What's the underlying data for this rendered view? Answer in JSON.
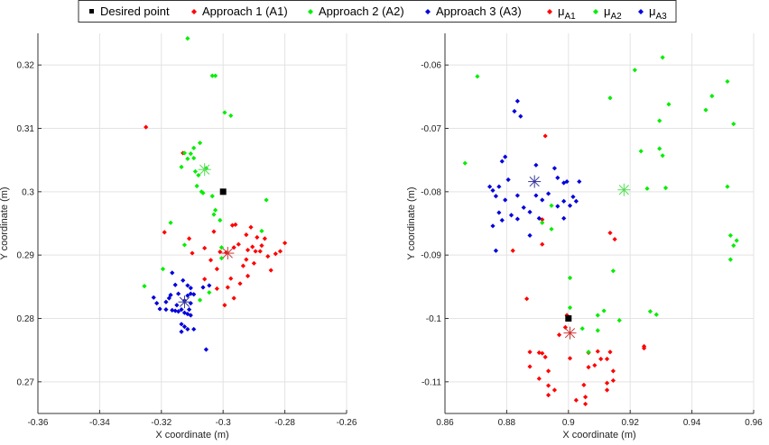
{
  "legend": {
    "placement": "top-center",
    "entries": [
      {
        "label": "Desired point",
        "color": "#000000",
        "marker": "square"
      },
      {
        "label": "Approach 1 (A1)",
        "color": "#ff0000",
        "marker": "diamond"
      },
      {
        "label": "Approach 2 (A2)",
        "color": "#00ee00",
        "marker": "diamond"
      },
      {
        "label": "Approach 3 (A3)",
        "color": "#0000dd",
        "marker": "diamond"
      },
      {
        "label": "μ",
        "sub": "A1",
        "color": "#ff0000",
        "marker": "diamond"
      },
      {
        "label": "μ",
        "sub": "A2",
        "color": "#00ee00",
        "marker": "diamond"
      },
      {
        "label": "μ",
        "sub": "A3",
        "color": "#0000dd",
        "marker": "diamond"
      }
    ]
  },
  "colors": {
    "desired": "#000000",
    "a1": "#ff0000",
    "a2": "#00ee00",
    "a3": "#0000dd",
    "mean_a1": "#cc3333",
    "mean_a2": "#55dd55",
    "mean_a3": "#333399",
    "grid": "#e3e3e3",
    "axis": "#333333"
  },
  "chart_data": [
    {
      "type": "scatter",
      "xlabel": "X coordinate (m)",
      "ylabel": "Y coordinate (m)",
      "xlim": [
        -0.36,
        -0.26
      ],
      "ylim": [
        0.265,
        0.325
      ],
      "xticks": [
        "-0.36",
        "-0.34",
        "-0.32",
        "-0.3",
        "-0.28",
        "-0.26"
      ],
      "yticks": [
        "0.27",
        "0.28",
        "0.29",
        "0.3",
        "0.31",
        "0.32"
      ],
      "xtick_values": [
        -0.36,
        -0.34,
        -0.32,
        -0.3,
        -0.28,
        -0.26
      ],
      "ytick_values": [
        0.27,
        0.28,
        0.29,
        0.3,
        0.31,
        0.32
      ],
      "grid": true,
      "desired_point": [
        -0.3,
        0.3
      ],
      "series": [
        {
          "key": "a1",
          "points": [
            [
              -0.325,
              0.3102
            ],
            [
              -0.319,
              0.2936
            ],
            [
              -0.313,
              0.3061
            ],
            [
              -0.311,
              0.2926
            ],
            [
              -0.31,
              0.2903
            ],
            [
              -0.306,
              0.2911
            ],
            [
              -0.306,
              0.2862
            ],
            [
              -0.304,
              0.2892
            ],
            [
              -0.303,
              0.2937
            ],
            [
              -0.302,
              0.2878
            ],
            [
              -0.301,
              0.2905
            ],
            [
              -0.299,
              0.2904
            ],
            [
              -0.297,
              0.2947
            ],
            [
              -0.2965,
              0.2912
            ],
            [
              -0.296,
              0.2948
            ],
            [
              -0.295,
              0.2917
            ],
            [
              -0.2945,
              0.2855
            ],
            [
              -0.2935,
              0.2883
            ],
            [
              -0.2925,
              0.2932
            ],
            [
              -0.2925,
              0.2893
            ],
            [
              -0.292,
              0.2908
            ],
            [
              -0.292,
              0.2867
            ],
            [
              -0.291,
              0.2944
            ],
            [
              -0.2905,
              0.2913
            ],
            [
              -0.29,
              0.2887
            ],
            [
              -0.2895,
              0.2906
            ],
            [
              -0.289,
              0.2928
            ],
            [
              -0.288,
              0.2906
            ],
            [
              -0.2875,
              0.2915
            ],
            [
              -0.2865,
              0.2926
            ],
            [
              -0.2855,
              0.2898
            ],
            [
              -0.2845,
              0.2876
            ],
            [
              -0.283,
              0.2902
            ],
            [
              -0.2815,
              0.2906
            ],
            [
              -0.28,
              0.2919
            ],
            [
              -0.302,
              0.2847
            ],
            [
              -0.2995,
              0.2821
            ],
            [
              -0.2965,
              0.2832
            ],
            [
              -0.2975,
              0.2863
            ],
            [
              -0.2985,
              0.2849
            ]
          ]
        },
        {
          "key": "a2",
          "points": [
            [
              -0.3115,
              0.3242
            ],
            [
              -0.3035,
              0.3183
            ],
            [
              -0.3025,
              0.3183
            ],
            [
              -0.2995,
              0.3125
            ],
            [
              -0.2975,
              0.312
            ],
            [
              -0.3075,
              0.3077
            ],
            [
              -0.3095,
              0.3069
            ],
            [
              -0.3105,
              0.306
            ],
            [
              -0.3125,
              0.3061
            ],
            [
              -0.3095,
              0.3053
            ],
            [
              -0.3115,
              0.3052
            ],
            [
              -0.3135,
              0.3039
            ],
            [
              -0.309,
              0.3032
            ],
            [
              -0.3055,
              0.3037
            ],
            [
              -0.308,
              0.3026
            ],
            [
              -0.3085,
              0.3009
            ],
            [
              -0.307,
              0.3
            ],
            [
              -0.3065,
              0.2998
            ],
            [
              -0.3035,
              0.2993
            ],
            [
              -0.3025,
              0.2971
            ],
            [
              -0.301,
              0.2955
            ],
            [
              -0.3125,
              0.2916
            ],
            [
              -0.317,
              0.2951
            ],
            [
              -0.3005,
              0.2912
            ],
            [
              -0.303,
              0.2964
            ],
            [
              -0.286,
              0.2987
            ],
            [
              -0.2875,
              0.2938
            ],
            [
              -0.3005,
              0.2895
            ],
            [
              -0.3195,
              0.2878
            ],
            [
              -0.3255,
              0.2851
            ],
            [
              -0.3045,
              0.2841
            ],
            [
              -0.3075,
              0.2829
            ]
          ]
        },
        {
          "key": "a3",
          "points": [
            [
              -0.3165,
              0.2872
            ],
            [
              -0.3155,
              0.2853
            ],
            [
              -0.317,
              0.2837
            ],
            [
              -0.313,
              0.286
            ],
            [
              -0.3115,
              0.2852
            ],
            [
              -0.3145,
              0.2839
            ],
            [
              -0.3115,
              0.2836
            ],
            [
              -0.3105,
              0.2839
            ],
            [
              -0.3175,
              0.2832
            ],
            [
              -0.3125,
              0.2828
            ],
            [
              -0.3105,
              0.2824
            ],
            [
              -0.3185,
              0.2826
            ],
            [
              -0.315,
              0.2821
            ],
            [
              -0.3135,
              0.2814
            ],
            [
              -0.311,
              0.2814
            ],
            [
              -0.3165,
              0.2813
            ],
            [
              -0.3155,
              0.2812
            ],
            [
              -0.3145,
              0.2811
            ],
            [
              -0.3125,
              0.2809
            ],
            [
              -0.3115,
              0.2807
            ],
            [
              -0.3105,
              0.2805
            ],
            [
              -0.3135,
              0.2791
            ],
            [
              -0.3125,
              0.2787
            ],
            [
              -0.3115,
              0.2783
            ],
            [
              -0.3095,
              0.2783
            ],
            [
              -0.3135,
              0.2779
            ],
            [
              -0.3225,
              0.2833
            ],
            [
              -0.3215,
              0.2824
            ],
            [
              -0.3065,
              0.2849
            ],
            [
              -0.3045,
              0.2852
            ],
            [
              -0.3055,
              0.2751
            ],
            [
              -0.3095,
              0.2838
            ],
            [
              -0.3205,
              0.2815
            ],
            [
              -0.3185,
              0.2814
            ],
            [
              -0.3105,
              0.2848
            ]
          ]
        }
      ],
      "means": [
        {
          "key": "a1",
          "point": [
            -0.2985,
            0.2903
          ]
        },
        {
          "key": "a2",
          "point": [
            -0.306,
            0.3035
          ]
        },
        {
          "key": "a3",
          "point": [
            -0.3125,
            0.2826
          ]
        }
      ]
    },
    {
      "type": "scatter",
      "xlabel": "X coordinate (m)",
      "ylabel": "Y coordinate (m)",
      "xlim": [
        0.86,
        0.96
      ],
      "ylim": [
        -0.115,
        -0.055
      ],
      "xticks": [
        "0.86",
        "0.88",
        "0.9",
        "0.92",
        "0.94",
        "0.96"
      ],
      "yticks": [
        "-0.11",
        "-0.1",
        "-0.09",
        "-0.08",
        "-0.07",
        "-0.06"
      ],
      "xtick_values": [
        0.86,
        0.88,
        0.9,
        0.92,
        0.94,
        0.96
      ],
      "ytick_values": [
        -0.11,
        -0.1,
        -0.09,
        -0.08,
        -0.07,
        -0.06
      ],
      "grid": true,
      "desired_point": [
        0.9,
        -0.1
      ],
      "series": [
        {
          "key": "a1",
          "points": [
            [
              0.8925,
              -0.0712
            ],
            [
              0.8915,
              -0.0844
            ],
            [
              0.8915,
              -0.0883
            ],
            [
              0.882,
              -0.0893
            ],
            [
              0.9135,
              -0.0865
            ],
            [
              0.915,
              -0.0875
            ],
            [
              0.8865,
              -0.0969
            ],
            [
              0.8995,
              -0.0995
            ],
            [
              0.899,
              -0.1014
            ],
            [
              0.897,
              -0.1026
            ],
            [
              0.8875,
              -0.1053
            ],
            [
              0.8905,
              -0.1054
            ],
            [
              0.8915,
              -0.1055
            ],
            [
              0.8925,
              -0.1061
            ],
            [
              0.9005,
              -0.1063
            ],
            [
              0.9065,
              -0.1054
            ],
            [
              0.9095,
              -0.1052
            ],
            [
              0.9135,
              -0.1053
            ],
            [
              0.9065,
              -0.1077
            ],
            [
              0.9085,
              -0.1074
            ],
            [
              0.9105,
              -0.1064
            ],
            [
              0.9125,
              -0.1064
            ],
            [
              0.8875,
              -0.1076
            ],
            [
              0.8935,
              -0.1083
            ],
            [
              0.8905,
              -0.1095
            ],
            [
              0.8935,
              -0.1106
            ],
            [
              0.8955,
              -0.1113
            ],
            [
              0.9025,
              -0.1129
            ],
            [
              0.9055,
              -0.1124
            ],
            [
              0.9125,
              -0.1102
            ],
            [
              0.9145,
              -0.1083
            ],
            [
              0.9145,
              -0.1098
            ],
            [
              0.9125,
              -0.1113
            ],
            [
              0.905,
              -0.1105
            ],
            [
              0.9245,
              -0.1044
            ],
            [
              0.9245,
              -0.1047
            ],
            [
              0.8935,
              -0.1121
            ],
            [
              0.9055,
              -0.1135
            ]
          ]
        },
        {
          "key": "a2",
          "points": [
            [
              0.8705,
              -0.0618
            ],
            [
              0.9215,
              -0.0608
            ],
            [
              0.9305,
              -0.0588
            ],
            [
              0.9515,
              -0.0626
            ],
            [
              0.9465,
              -0.0649
            ],
            [
              0.9445,
              -0.0671
            ],
            [
              0.9325,
              -0.0662
            ],
            [
              0.9135,
              -0.0652
            ],
            [
              0.9295,
              -0.0688
            ],
            [
              0.9535,
              -0.0693
            ],
            [
              0.8665,
              -0.0755
            ],
            [
              0.9235,
              -0.0736
            ],
            [
              0.9295,
              -0.0732
            ],
            [
              0.9305,
              -0.0743
            ],
            [
              0.9255,
              -0.0795
            ],
            [
              0.9315,
              -0.0794
            ],
            [
              0.9515,
              -0.0792
            ],
            [
              0.9525,
              -0.0869
            ],
            [
              0.9545,
              -0.0877
            ],
            [
              0.9535,
              -0.0885
            ],
            [
              0.9525,
              -0.0907
            ],
            [
              0.8945,
              -0.0822
            ],
            [
              0.8945,
              -0.0859
            ],
            [
              0.8915,
              -0.0849
            ],
            [
              0.9005,
              -0.0936
            ],
            [
              0.9005,
              -0.0983
            ],
            [
              0.9095,
              -0.0995
            ],
            [
              0.9115,
              -0.0988
            ],
            [
              0.9045,
              -0.1016
            ],
            [
              0.9065,
              -0.1053
            ],
            [
              0.9095,
              -0.1019
            ],
            [
              0.9165,
              -0.1003
            ],
            [
              0.9265,
              -0.0989
            ],
            [
              0.9285,
              -0.0994
            ],
            [
              0.9145,
              -0.0925
            ]
          ]
        },
        {
          "key": "a3",
          "points": [
            [
              0.8835,
              -0.0657
            ],
            [
              0.8825,
              -0.0673
            ],
            [
              0.8845,
              -0.0681
            ],
            [
              0.8895,
              -0.0758
            ],
            [
              0.8795,
              -0.0745
            ],
            [
              0.8785,
              -0.0752
            ],
            [
              0.8775,
              -0.0792
            ],
            [
              0.8805,
              -0.0781
            ],
            [
              0.8795,
              -0.0813
            ],
            [
              0.8815,
              -0.0837
            ],
            [
              0.8835,
              -0.0843
            ],
            [
              0.8755,
              -0.0798
            ],
            [
              0.8745,
              -0.0792
            ],
            [
              0.8765,
              -0.0807
            ],
            [
              0.8775,
              -0.0833
            ],
            [
              0.8785,
              -0.0845
            ],
            [
              0.8755,
              -0.0854
            ],
            [
              0.8765,
              -0.0893
            ],
            [
              0.8835,
              -0.0806
            ],
            [
              0.8855,
              -0.0825
            ],
            [
              0.8875,
              -0.0832
            ],
            [
              0.8895,
              -0.0806
            ],
            [
              0.8915,
              -0.0813
            ],
            [
              0.8935,
              -0.0803
            ],
            [
              0.8965,
              -0.0823
            ],
            [
              0.8985,
              -0.0842
            ],
            [
              0.9005,
              -0.0822
            ],
            [
              0.9025,
              -0.0815
            ],
            [
              0.9035,
              -0.0784
            ],
            [
              0.8985,
              -0.0786
            ],
            [
              0.8965,
              -0.0778
            ],
            [
              0.8955,
              -0.0763
            ],
            [
              0.8995,
              -0.0784
            ],
            [
              0.8875,
              -0.0869
            ],
            [
              0.8905,
              -0.0842
            ],
            [
              0.8985,
              -0.0815
            ],
            [
              0.9015,
              -0.0808
            ]
          ]
        }
      ],
      "means": [
        {
          "key": "a1",
          "point": [
            0.9005,
            -0.1023
          ]
        },
        {
          "key": "a2",
          "point": [
            0.918,
            -0.0797
          ]
        },
        {
          "key": "a3",
          "point": [
            0.889,
            -0.0784
          ]
        }
      ]
    }
  ]
}
